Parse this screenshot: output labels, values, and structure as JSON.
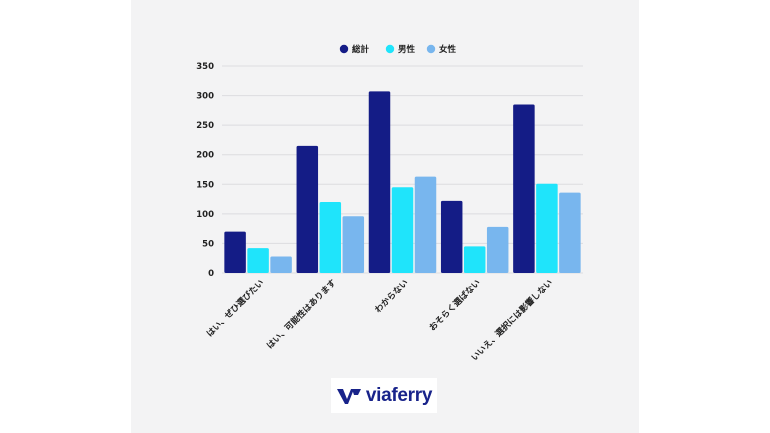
{
  "chart_data": {
    "type": "bar",
    "categories": [
      "はい、ぜひ選びたい",
      "はい、可能性はあります",
      "わからない",
      "おそらく選ばない",
      "いいえ、選択には影響しない"
    ],
    "series": [
      {
        "name": "総計",
        "values": [
          70,
          215,
          307,
          122,
          285
        ],
        "color": "#141c86"
      },
      {
        "name": "男性",
        "values": [
          42,
          120,
          145,
          45,
          151
        ],
        "color": "#1fe4fb"
      },
      {
        "name": "女性",
        "values": [
          28,
          96,
          163,
          78,
          136
        ],
        "color": "#78b6ee"
      }
    ],
    "ylim": [
      0,
      350
    ],
    "yticks": [
      0,
      50,
      100,
      150,
      200,
      250,
      300,
      350
    ],
    "grid": true,
    "legend_position": "top-center"
  },
  "logo": {
    "text": "viaferry",
    "icon": "viaferry-logo-icon",
    "color": "#18238a"
  }
}
